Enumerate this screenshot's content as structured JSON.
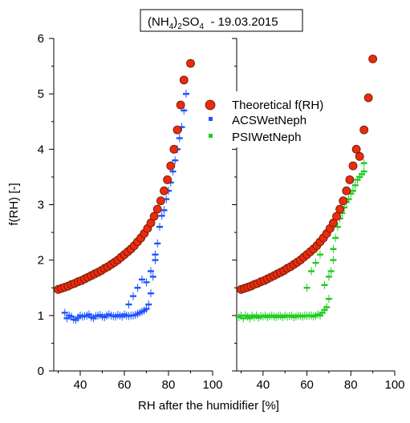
{
  "figure": {
    "title_main": "(NH",
    "title_sub1": "4",
    "title_mid": ")",
    "title_sub2": "2",
    "title_after": "SO",
    "title_sub3": "4",
    "title_date": "  - 19.03.2015",
    "ylabel": "f(RH) [-]",
    "xlabel": "RH  after the humidifier [%]"
  },
  "colors": {
    "theory_fill": "#ee2a0c",
    "theory_edge": "#5a1a05",
    "acs": "#1f55ff",
    "psi": "#1fcc1f",
    "axis": "#000000"
  },
  "legend": {
    "placement": "top-right of left panel",
    "items": [
      {
        "label": "Theoretical f(RH)",
        "marker": "circle"
      },
      {
        "label": "ACSWetNeph",
        "marker": "square-blue"
      },
      {
        "label": "PSIWetNeph",
        "marker": "square-green"
      }
    ]
  },
  "chart_data": {
    "type": "scatter",
    "ylim": [
      0,
      6
    ],
    "yticks": [
      "0",
      "1",
      "2",
      "3",
      "4",
      "5",
      "6"
    ],
    "panels": [
      {
        "xlim": [
          28,
          100
        ],
        "xticks": [
          "40",
          "60",
          "80",
          "100"
        ],
        "series": [
          {
            "name": "Theoretical f(RH)",
            "marker": "circle",
            "x": [
              30,
              31.5,
              33,
              34.5,
              36,
              37.5,
              39,
              40.5,
              42,
              43.5,
              45,
              46.5,
              48,
              49.5,
              51,
              52.5,
              54,
              55.5,
              57,
              58.5,
              60,
              61.5,
              63,
              64.5,
              66,
              67.5,
              69,
              70.5,
              72,
              73.5,
              75,
              76.5,
              78,
              79.5,
              81,
              82.5,
              84,
              85.5,
              87,
              90
            ],
            "y": [
              1.47,
              1.49,
              1.51,
              1.53,
              1.56,
              1.58,
              1.61,
              1.63,
              1.66,
              1.69,
              1.72,
              1.75,
              1.78,
              1.81,
              1.85,
              1.88,
              1.92,
              1.96,
              2.0,
              2.05,
              2.1,
              2.15,
              2.2,
              2.26,
              2.33,
              2.4,
              2.48,
              2.57,
              2.67,
              2.79,
              2.92,
              3.07,
              3.25,
              3.45,
              3.7,
              4.0,
              4.35,
              4.8,
              5.25,
              5.55
            ]
          },
          {
            "name": "ACSWetNeph",
            "marker": "errbar-blue",
            "x": [
              33,
              34,
              35,
              36,
              37,
              38,
              39,
              40,
              41,
              42,
              43,
              44,
              45,
              46,
              47,
              48,
              49,
              50,
              51,
              52,
              53,
              54,
              55,
              56,
              57,
              58,
              59,
              60,
              61,
              62,
              63,
              64,
              65,
              66,
              67,
              68,
              69,
              70,
              71,
              72,
              73,
              74,
              75,
              76,
              77,
              78,
              79,
              80,
              81,
              82,
              83,
              84,
              85,
              86,
              87,
              88
            ],
            "y": [
              1.05,
              0.95,
              1.0,
              0.98,
              0.93,
              0.92,
              0.96,
              1.0,
              0.98,
              0.99,
              1.0,
              1.02,
              0.97,
              0.95,
              0.99,
              1.0,
              1.01,
              0.98,
              0.97,
              1.0,
              1.02,
              1.0,
              0.99,
              0.98,
              1.01,
              1.0,
              0.98,
              1.02,
              1.0,
              0.99,
              1.0,
              1.0,
              1.01,
              1.03,
              1.05,
              1.07,
              1.09,
              1.12,
              1.2,
              1.4,
              1.7,
              2.0,
              2.3,
              2.6,
              2.8,
              2.9,
              3.1,
              3.25,
              3.4,
              3.6,
              3.8,
              4.0,
              4.2,
              4.4,
              4.7,
              5.0
            ]
          },
          {
            "name": "ACSWetNeph outliers",
            "marker": "errbar-blue",
            "x": [
              62,
              64,
              66,
              68,
              70,
              72,
              74,
              88
            ],
            "y": [
              1.2,
              1.35,
              1.5,
              1.65,
              1.6,
              1.8,
              2.1,
              5.0
            ]
          }
        ]
      },
      {
        "xlim": [
          28,
          100
        ],
        "xticks": [
          "40",
          "60",
          "80",
          "100"
        ],
        "series": [
          {
            "name": "Theoretical f(RH)",
            "marker": "circle",
            "x": [
              30,
              31.5,
              33,
              34.5,
              36,
              37.5,
              39,
              40.5,
              42,
              43.5,
              45,
              46.5,
              48,
              49.5,
              51,
              52.5,
              54,
              55.5,
              57,
              58.5,
              60,
              61.5,
              63,
              64.5,
              66,
              67.5,
              69,
              70.5,
              72,
              73.5,
              75,
              76.5,
              78,
              79.5,
              81,
              82.5,
              84,
              86,
              88,
              90
            ],
            "y": [
              1.47,
              1.49,
              1.51,
              1.53,
              1.56,
              1.58,
              1.61,
              1.63,
              1.66,
              1.69,
              1.72,
              1.75,
              1.78,
              1.81,
              1.85,
              1.88,
              1.92,
              1.96,
              2.0,
              2.05,
              2.1,
              2.15,
              2.2,
              2.26,
              2.33,
              2.4,
              2.48,
              2.57,
              2.67,
              2.79,
              2.92,
              3.07,
              3.25,
              3.45,
              3.7,
              4.0,
              3.87,
              4.35,
              4.93,
              5.63
            ]
          },
          {
            "name": "PSIWetNeph",
            "marker": "errbar-green",
            "x": [
              29,
              30,
              31,
              32,
              33,
              34,
              35,
              36,
              37,
              38,
              39,
              40,
              41,
              42,
              43,
              44,
              45,
              46,
              47,
              48,
              49,
              50,
              51,
              52,
              53,
              54,
              55,
              56,
              57,
              58,
              59,
              60,
              61,
              62,
              63,
              64,
              65,
              66,
              67,
              68,
              69,
              70,
              71,
              72,
              73,
              74,
              75,
              76,
              77,
              78,
              79,
              80,
              81,
              82,
              83,
              84,
              85,
              86
            ],
            "y": [
              0.97,
              1.0,
              0.95,
              1.0,
              0.98,
              0.95,
              1.0,
              0.97,
              1.0,
              0.96,
              0.99,
              0.98,
              1.0,
              0.97,
              0.99,
              1.0,
              0.98,
              0.97,
              1.0,
              0.99,
              0.97,
              1.0,
              0.98,
              0.99,
              1.0,
              0.97,
              0.98,
              1.0,
              0.99,
              0.98,
              1.0,
              0.99,
              1.0,
              1.0,
              0.98,
              1.0,
              1.02,
              1.0,
              1.05,
              1.1,
              1.15,
              1.3,
              1.8,
              2.2,
              2.4,
              2.6,
              2.75,
              2.85,
              2.95,
              3.05,
              3.1,
              3.2,
              3.25,
              3.35,
              3.45,
              3.5,
              3.55,
              3.6
            ]
          },
          {
            "name": "PSIWetNeph outliers",
            "marker": "errbar-green",
            "x": [
              60,
              62,
              64,
              66,
              68,
              70,
              72,
              86
            ],
            "y": [
              1.5,
              1.8,
              1.95,
              2.1,
              1.55,
              1.7,
              2.0,
              3.75
            ]
          }
        ]
      }
    ]
  }
}
